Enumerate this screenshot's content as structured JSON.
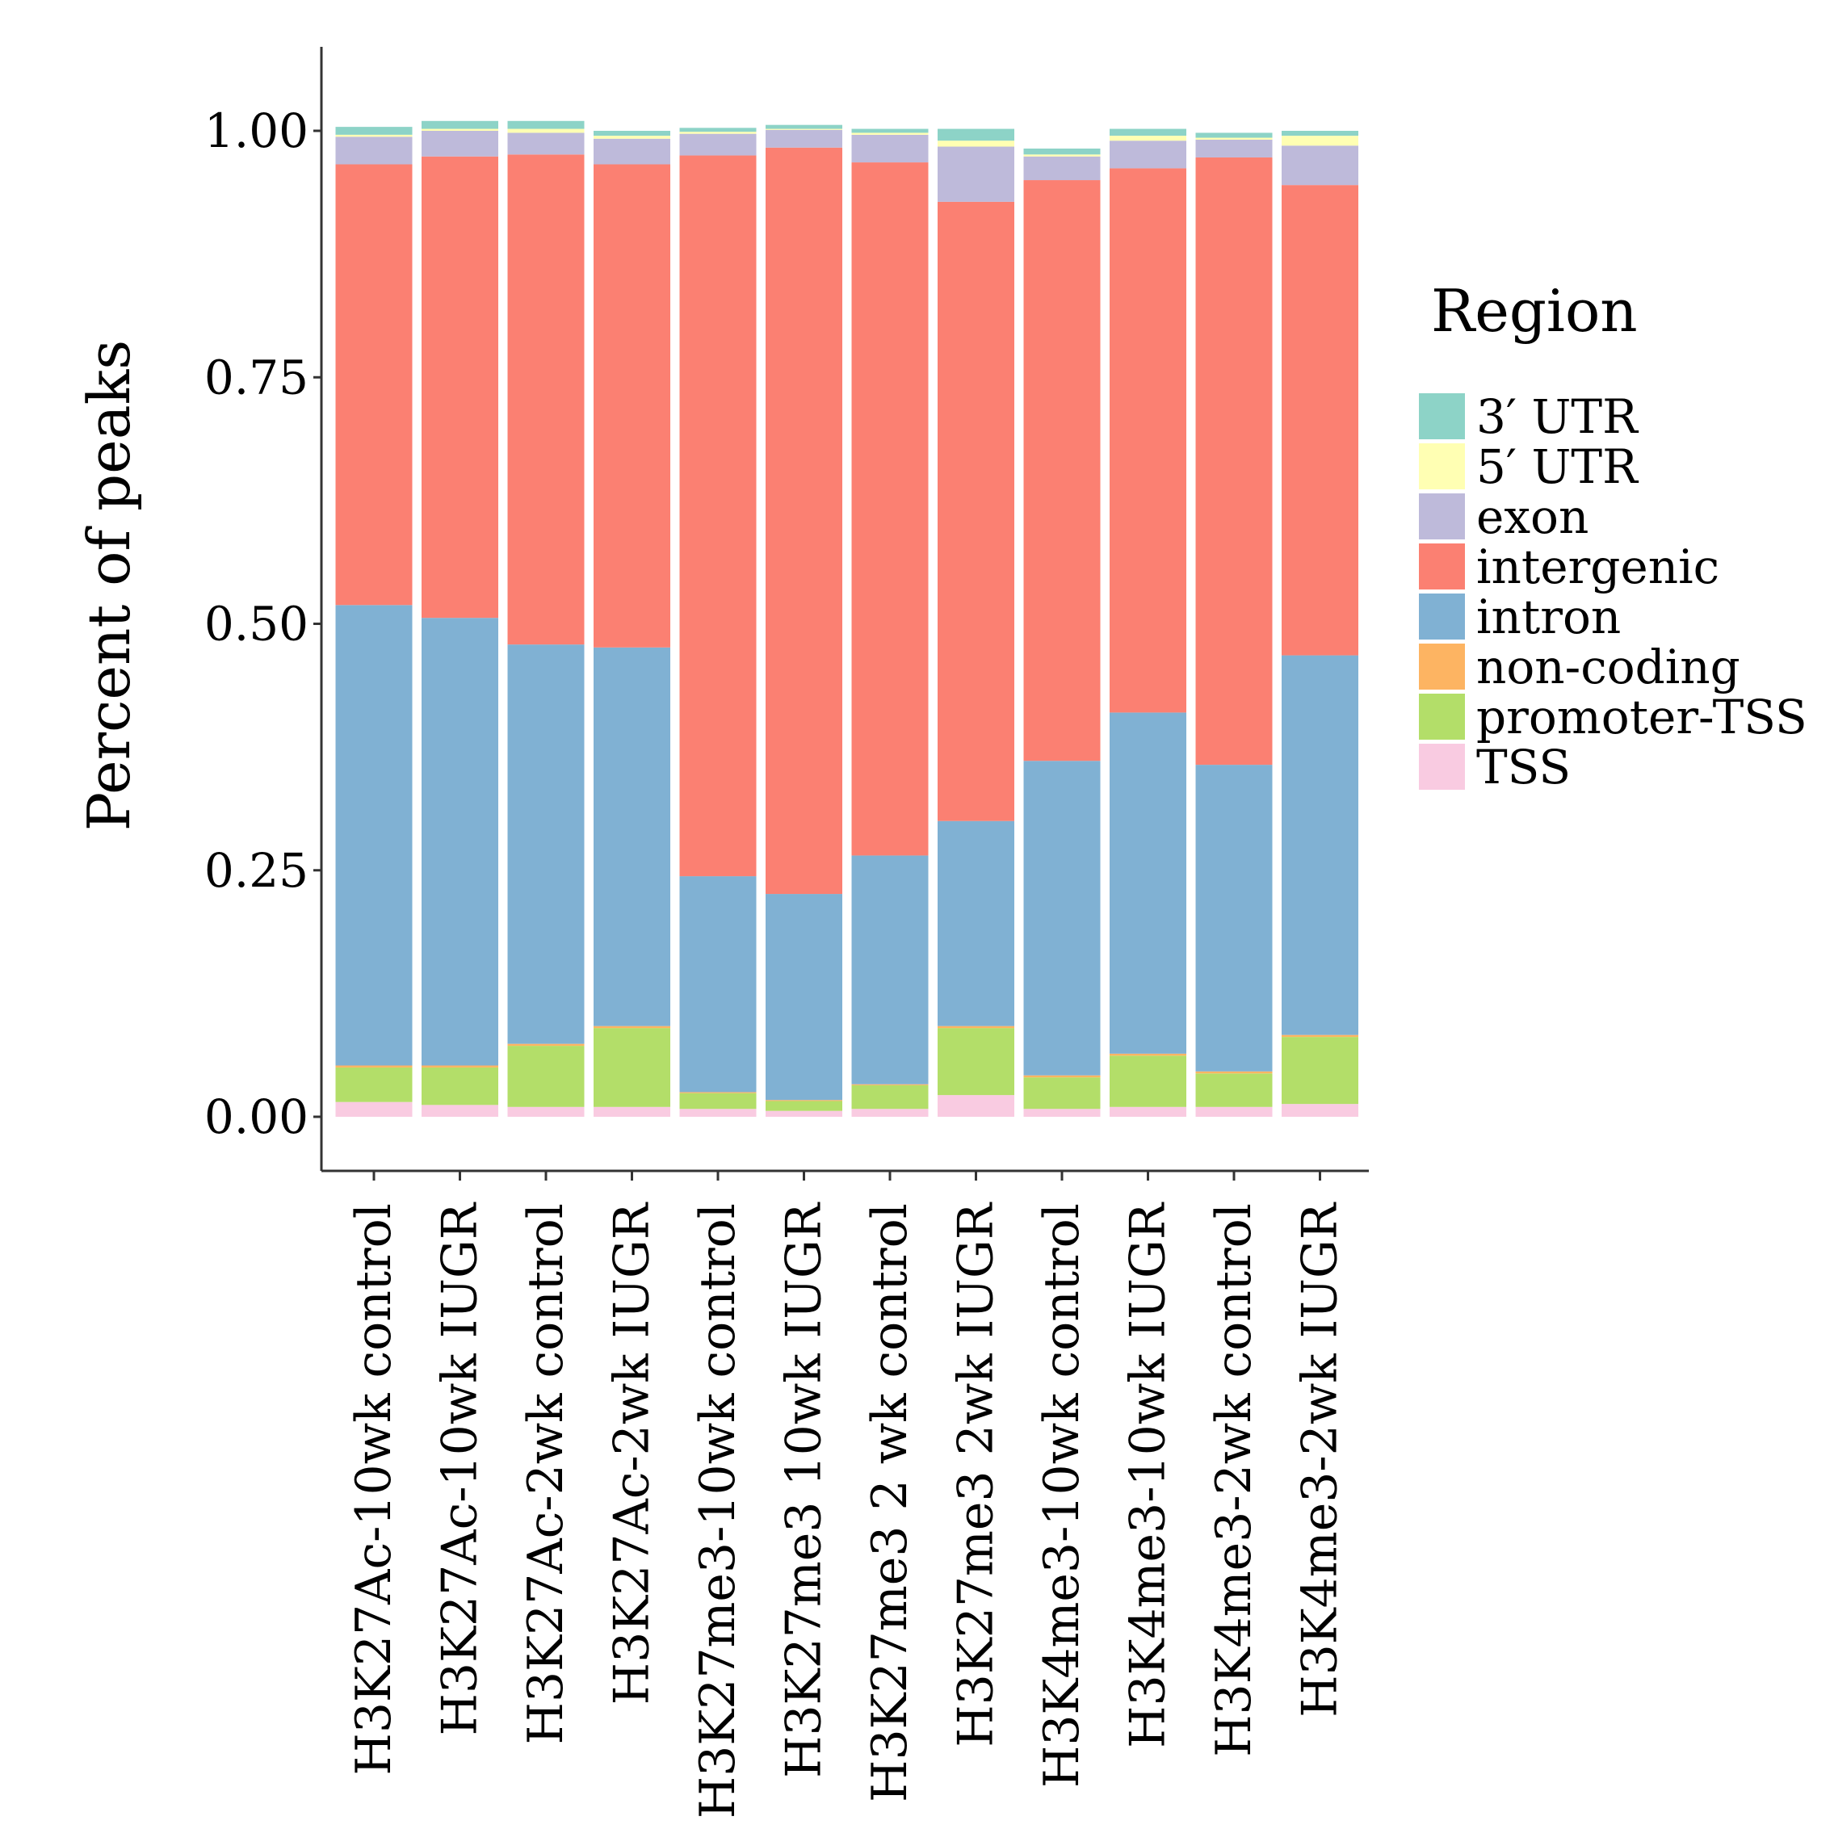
{
  "chart_data": {
    "type": "bar",
    "stacked": true,
    "title": "",
    "xlabel": "",
    "ylabel": "Percent of peaks",
    "ylim": [
      -0.05,
      1.1
    ],
    "yticks": [
      {
        "value": 0.0,
        "label": "0.00"
      },
      {
        "value": 0.25,
        "label": "0.25"
      },
      {
        "value": 0.5,
        "label": "0.50"
      },
      {
        "value": 0.75,
        "label": "0.75"
      },
      {
        "value": 1.0,
        "label": "1.00"
      }
    ],
    "categories": [
      "H3K27Ac-10wk control",
      "H3K27Ac-10wk IUGR",
      "H3K27Ac-2wk control",
      "H3K27Ac-2wk IUGR",
      "H3K27me3-10wk control",
      "H3K27me3 10wk IUGR",
      "H3K27me3 2 wk control",
      "H3K27me3 2wk IUGR",
      "H3K4me3-10wk control",
      "H3K4me3-10wk IUGR",
      "H3K4me3-2wk control",
      "H3K4me3-2wk IUGR"
    ],
    "legend_title": "Region",
    "legend_position": "right",
    "series": [
      {
        "name": "TSS",
        "color": "#F9CBE1",
        "values": [
          0.015,
          0.012,
          0.01,
          0.01,
          0.008,
          0.006,
          0.008,
          0.022,
          0.008,
          0.01,
          0.01,
          0.013
        ]
      },
      {
        "name": "promoter-TSS",
        "color": "#B3DE69",
        "values": [
          0.035,
          0.038,
          0.062,
          0.08,
          0.016,
          0.01,
          0.024,
          0.068,
          0.032,
          0.052,
          0.034,
          0.068
        ]
      },
      {
        "name": "non-coding",
        "color": "#FDB462",
        "values": [
          0.002,
          0.002,
          0.002,
          0.002,
          0.001,
          0.001,
          0.001,
          0.002,
          0.002,
          0.002,
          0.002,
          0.002
        ]
      },
      {
        "name": "intron",
        "color": "#80B1D3",
        "values": [
          0.467,
          0.454,
          0.405,
          0.384,
          0.219,
          0.209,
          0.232,
          0.208,
          0.319,
          0.346,
          0.311,
          0.385
        ]
      },
      {
        "name": "intergenic",
        "color": "#FB8072",
        "values": [
          0.447,
          0.468,
          0.497,
          0.49,
          0.731,
          0.757,
          0.703,
          0.628,
          0.589,
          0.552,
          0.616,
          0.477
        ]
      },
      {
        "name": "exon",
        "color": "#BEBADA",
        "values": [
          0.028,
          0.026,
          0.022,
          0.026,
          0.022,
          0.018,
          0.028,
          0.056,
          0.024,
          0.028,
          0.018,
          0.04
        ]
      },
      {
        "name": "5′ UTR",
        "color": "#FFFFB3",
        "values": [
          0.002,
          0.002,
          0.004,
          0.003,
          0.002,
          0.001,
          0.002,
          0.006,
          0.002,
          0.005,
          0.002,
          0.01
        ]
      },
      {
        "name": "3′ UTR",
        "color": "#8DD3C7",
        "values": [
          0.008,
          0.008,
          0.008,
          0.005,
          0.004,
          0.004,
          0.004,
          0.012,
          0.006,
          0.007,
          0.005,
          0.005
        ]
      }
    ],
    "legend_order": [
      "3′ UTR",
      "5′ UTR",
      "exon",
      "intergenic",
      "intron",
      "non-coding",
      "promoter-TSS",
      "TSS"
    ]
  }
}
